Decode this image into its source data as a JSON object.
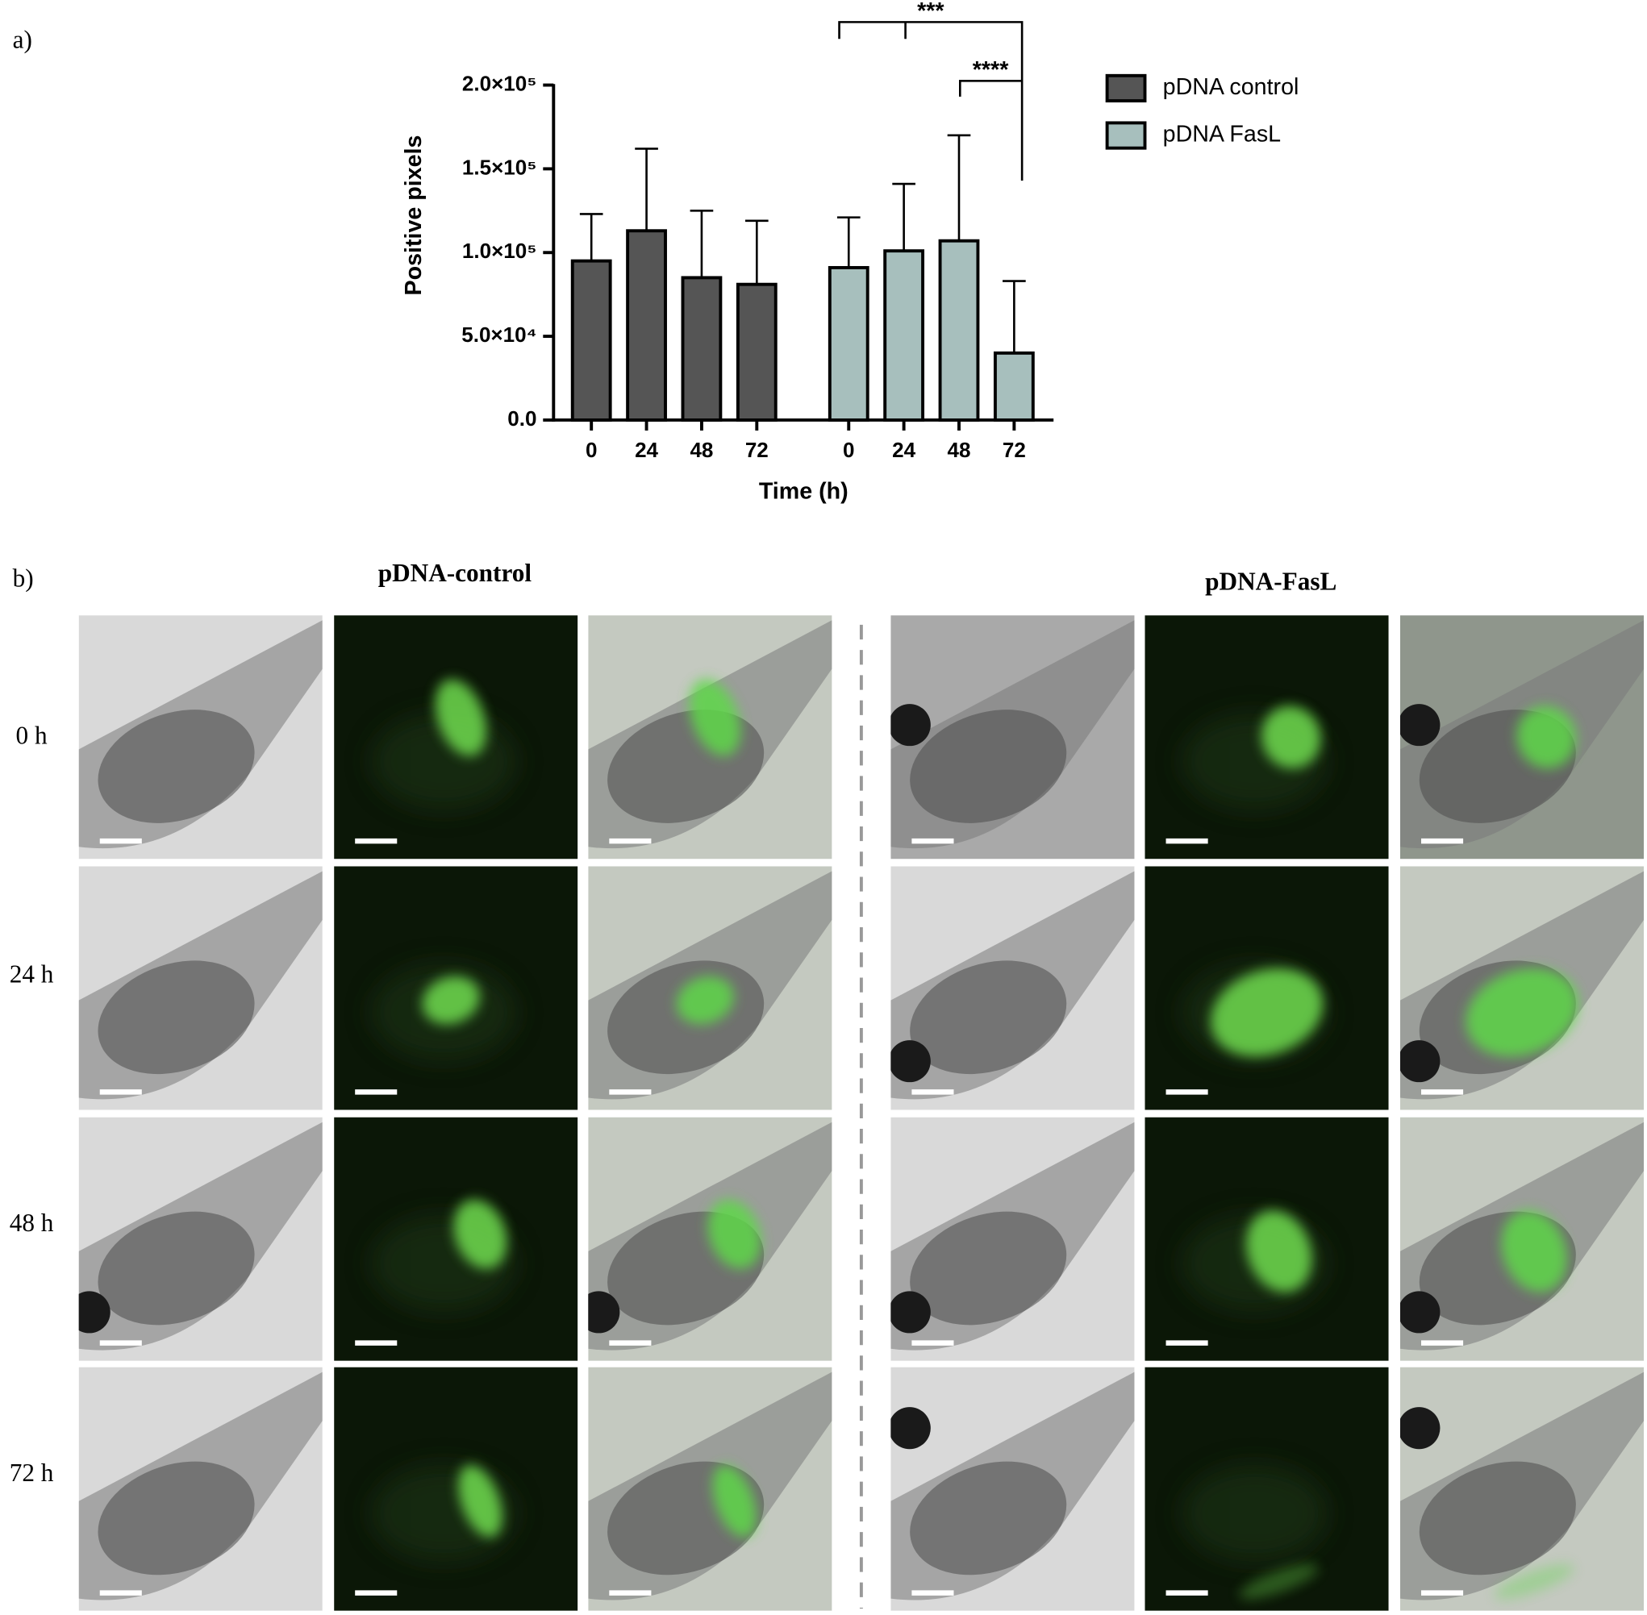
{
  "panel_labels": [
    "a)",
    "b)"
  ],
  "chart_data": {
    "type": "bar",
    "x_label": "Time (h)",
    "y_label": "Positive pixels",
    "categories": [
      "0",
      "24",
      "48",
      "72"
    ],
    "series": [
      {
        "name": "pDNA control",
        "color": "#555555",
        "values": [
          95000,
          113000,
          85000,
          81000
        ],
        "errors": [
          28000,
          49000,
          40000,
          38000
        ]
      },
      {
        "name": "pDNA FasL",
        "color": "#a7bfbd",
        "values": [
          91000,
          101000,
          107000,
          40000
        ],
        "errors": [
          30000,
          40000,
          63000,
          43000
        ]
      }
    ],
    "ylim": [
      0,
      200000
    ],
    "yticks": [
      {
        "value": 0,
        "label": "0.0"
      },
      {
        "value": 50000,
        "label": "5.0×10⁴"
      },
      {
        "value": 100000,
        "label": "1.0×10⁵"
      },
      {
        "value": 150000,
        "label": "1.5×10⁵"
      },
      {
        "value": 200000,
        "label": "2.0×10⁵"
      }
    ],
    "annotations": [
      "***",
      "****"
    ],
    "legend": "right",
    "grid": false
  },
  "image_grid": {
    "column_headers": [
      "pDNA-control",
      "pDNA-FasL"
    ],
    "row_labels": [
      "0 h",
      "24 h",
      "48 h",
      "72 h"
    ]
  }
}
